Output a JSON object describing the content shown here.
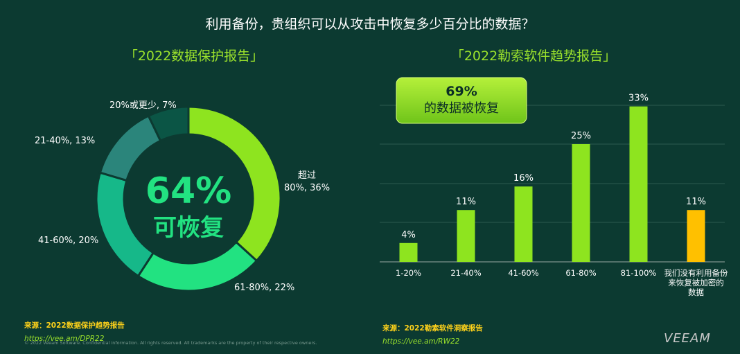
{
  "title": "利用备份，贵组织可以从攻击中恢复多少百分比的数据？",
  "left": {
    "subtitle": "「2022数据保护报告」",
    "center_value": "64%",
    "center_label": "可恢复",
    "source_prefix": "来源：",
    "source_name": "2022数据保护趋势报告",
    "source_url": "https://vee.am/DPR22"
  },
  "right": {
    "subtitle": "「2022勒索软件趋势报告」",
    "callout_value": "69%",
    "callout_label": "的数据被恢复",
    "source_prefix": "来源：",
    "source_name": "2022勒索软件洞察报告",
    "source_url": "https://vee.am/RW22"
  },
  "copyright": "© 2022 Veeam Software. Confidential information. All rights reserved. All trademarks are the property of their respective owners.",
  "logo_text": "VEEAM",
  "chart_data": [
    {
      "type": "pie",
      "donut": true,
      "categories": [
        "超过80%",
        "61-80%",
        "41-60%",
        "21-40%",
        "20%或更少"
      ],
      "values": [
        36,
        22,
        20,
        13,
        7
      ],
      "labels": [
        [
          "超过",
          "80%, 36%"
        ],
        [
          "61-80%, 22%"
        ],
        [
          "41-60%, 20%"
        ],
        [
          "21-40%, 13%"
        ],
        [
          "20%或更少, 7%"
        ]
      ],
      "colors": [
        "#8ee41f",
        "#22e281",
        "#16b889",
        "#2b857b",
        "#0b5545"
      ]
    },
    {
      "type": "bar",
      "categories": [
        "1-20%",
        "21-40%",
        "41-60%",
        "61-80%",
        "81-100%",
        "我们没有利用备份来恢复被加密的数据"
      ],
      "category_lines": [
        [
          "1-20%"
        ],
        [
          "21-40%"
        ],
        [
          "41-60%"
        ],
        [
          "61-80%"
        ],
        [
          "81-100%"
        ],
        [
          "我们没有利用备份",
          "来恢复被加密的",
          "数据"
        ]
      ],
      "values": [
        4,
        11,
        16,
        25,
        33,
        11
      ],
      "value_labels": [
        "4%",
        "11%",
        "16%",
        "25%",
        "33%",
        "11%"
      ],
      "colors": [
        "#8ee41f",
        "#8ee41f",
        "#8ee41f",
        "#8ee41f",
        "#8ee41f",
        "#ffc000"
      ],
      "ylim": [
        0,
        40
      ],
      "grid": true
    }
  ]
}
